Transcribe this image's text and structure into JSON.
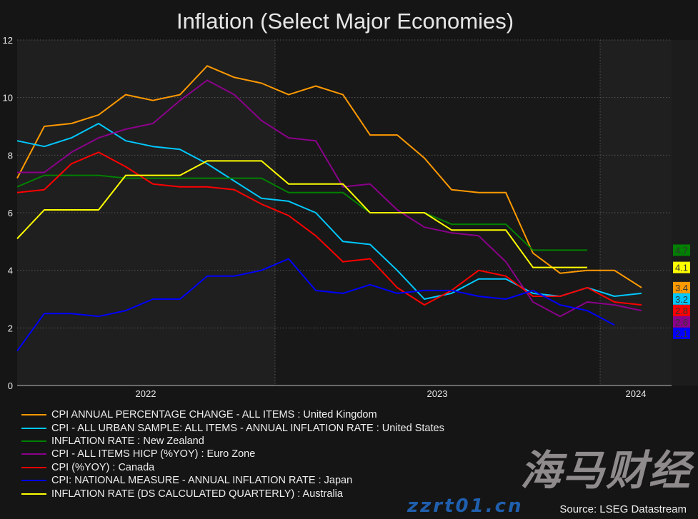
{
  "chart_data": {
    "type": "line",
    "title": "Inflation (Select Major Economies)",
    "xlabel": "",
    "ylabel": "",
    "ylim": [
      0,
      12
    ],
    "yticks": [
      0,
      2,
      4,
      6,
      8,
      10,
      12
    ],
    "x_tick_labels": [
      "2022",
      "2023",
      "2024"
    ],
    "grid": true,
    "legend_placement": "bottom",
    "x": [
      "2022-03",
      "2022-04",
      "2022-05",
      "2022-06",
      "2022-07",
      "2022-08",
      "2022-09",
      "2022-10",
      "2022-11",
      "2022-12",
      "2023-01",
      "2023-02",
      "2023-03",
      "2023-04",
      "2023-05",
      "2023-06",
      "2023-07",
      "2023-08",
      "2023-09",
      "2023-10",
      "2023-11",
      "2023-12",
      "2024-01",
      "2024-02"
    ],
    "series": [
      {
        "name": "CPI ANNUAL PERCENTAGE CHANGE - ALL ITEMS : United Kingdom",
        "color": "#ff9900",
        "last_label": "3.4",
        "values": [
          7.2,
          9.0,
          9.1,
          9.4,
          10.1,
          9.9,
          10.1,
          11.1,
          10.7,
          10.5,
          10.1,
          10.4,
          10.1,
          8.7,
          8.7,
          7.9,
          6.8,
          6.7,
          6.7,
          4.6,
          3.9,
          4.0,
          4.0,
          3.4
        ]
      },
      {
        "name": "CPI - ALL URBAN SAMPLE: ALL ITEMS - ANNUAL INFLATION RATE : United States",
        "color": "#00c8ff",
        "last_label": "3.2",
        "values": [
          8.5,
          8.3,
          8.6,
          9.1,
          8.5,
          8.3,
          8.2,
          7.7,
          7.1,
          6.5,
          6.4,
          6.0,
          5.0,
          4.9,
          4.0,
          3.0,
          3.2,
          3.7,
          3.7,
          3.2,
          3.1,
          3.4,
          3.1,
          3.2
        ]
      },
      {
        "name": "INFLATION RATE : New Zealand",
        "color": "#008000",
        "last_label": "4.7",
        "values": [
          6.9,
          7.3,
          7.3,
          7.3,
          7.2,
          7.2,
          7.2,
          7.2,
          7.2,
          7.2,
          6.7,
          6.7,
          6.7,
          6.0,
          6.0,
          6.0,
          5.6,
          5.6,
          5.6,
          4.7,
          4.7,
          4.7,
          null,
          null
        ]
      },
      {
        "name": "CPI - ALL ITEMS HICP (%YOY) : Euro Zone",
        "color": "#8b008b",
        "last_label": "2.6",
        "values": [
          7.4,
          7.4,
          8.1,
          8.6,
          8.9,
          9.1,
          9.9,
          10.6,
          10.1,
          9.2,
          8.6,
          8.5,
          6.9,
          7.0,
          6.1,
          5.5,
          5.3,
          5.2,
          4.3,
          2.9,
          2.4,
          2.9,
          2.8,
          2.6
        ]
      },
      {
        "name": "CPI (%YOY) : Canada",
        "color": "#ff0000",
        "last_label": "2.8",
        "values": [
          6.7,
          6.8,
          7.7,
          8.1,
          7.6,
          7.0,
          6.9,
          6.9,
          6.8,
          6.3,
          5.9,
          5.2,
          4.3,
          4.4,
          3.4,
          2.8,
          3.3,
          4.0,
          3.8,
          3.1,
          3.1,
          3.4,
          2.9,
          2.8
        ]
      },
      {
        "name": "CPI: NATIONAL MEASURE - ANNUAL INFLATION RATE : Japan",
        "color": "#0000ff",
        "last_label": "2.1",
        "values": [
          1.2,
          2.5,
          2.5,
          2.4,
          2.6,
          3.0,
          3.0,
          3.8,
          3.8,
          4.0,
          4.4,
          3.3,
          3.2,
          3.5,
          3.2,
          3.3,
          3.3,
          3.1,
          3.0,
          3.3,
          2.8,
          2.6,
          2.1,
          null
        ]
      },
      {
        "name": "INFLATION RATE (DS CALCULATED QUARTERLY) : Australia",
        "color": "#ffff00",
        "last_label": "4.1",
        "values": [
          5.1,
          6.1,
          6.1,
          6.1,
          7.3,
          7.3,
          7.3,
          7.8,
          7.8,
          7.8,
          7.0,
          7.0,
          7.0,
          6.0,
          6.0,
          6.0,
          5.4,
          5.4,
          5.4,
          4.1,
          4.1,
          4.1,
          null,
          null
        ]
      }
    ]
  },
  "source": "Source: LSEG Datastream",
  "watermark": "海马财经",
  "watermark_url": "zzrt01.cn"
}
